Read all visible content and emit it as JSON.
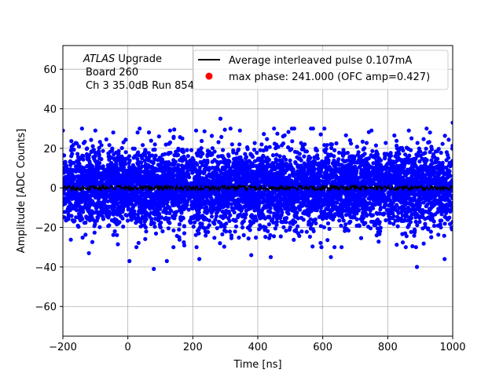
{
  "chart_data": {
    "type": "scatter",
    "xlabel": "Time [ns]",
    "ylabel": "Amplitude [ADC Counts]",
    "xlim": [
      -200,
      1000
    ],
    "ylim": [
      -75,
      72
    ],
    "xticks": [
      -200,
      0,
      200,
      400,
      600,
      800,
      1000
    ],
    "yticks": [
      -60,
      -40,
      -20,
      0,
      20,
      40,
      60
    ],
    "xtick_labels": [
      "−200",
      "0",
      "200",
      "400",
      "600",
      "800",
      "1000"
    ],
    "ytick_labels": [
      "−60",
      "−40",
      "−20",
      "0",
      "20",
      "40",
      "60"
    ],
    "grid": true,
    "legend_position": "top-right",
    "annotation": {
      "atlas": "ATLAS",
      "upgrade": " Upgrade",
      "board": "Board 260",
      "channel": "Ch 3 35.0dB  Run 854"
    },
    "series": [
      {
        "name": "Average interleaved pulse 0.107mA",
        "kind": "line",
        "color": "#000000",
        "x_range": [
          -200,
          1000
        ],
        "level": 0.0,
        "noise_amplitude": 1.2
      },
      {
        "name": "max phase: 241.000 (OFC amp=0.427)",
        "kind": "marker",
        "color": "#ff0000",
        "x": 241.0,
        "y": 0.427
      },
      {
        "name": "samples",
        "kind": "scatter",
        "color": "#0000ff",
        "x_range": [
          -200,
          1000
        ],
        "mean": 0,
        "std_dev": 9.5,
        "num_points": 6000,
        "outliers": [
          {
            "x": -200,
            "y": 29
          },
          {
            "x": -100,
            "y": 29
          },
          {
            "x": -45,
            "y": 28
          },
          {
            "x": 30,
            "y": 28
          },
          {
            "x": 130,
            "y": 29
          },
          {
            "x": 210,
            "y": 29
          },
          {
            "x": 285,
            "y": 35
          },
          {
            "x": 345,
            "y": 29
          },
          {
            "x": 450,
            "y": 30
          },
          {
            "x": 505,
            "y": 30
          },
          {
            "x": 570,
            "y": 30
          },
          {
            "x": 605,
            "y": 30
          },
          {
            "x": 750,
            "y": 29
          },
          {
            "x": 865,
            "y": 29
          },
          {
            "x": 930,
            "y": 28
          },
          {
            "x": 1000,
            "y": 33
          },
          {
            "x": 5,
            "y": -37
          },
          {
            "x": 80,
            "y": -41
          },
          {
            "x": 120,
            "y": -37
          },
          {
            "x": 220,
            "y": -36
          },
          {
            "x": 440,
            "y": -35
          },
          {
            "x": 625,
            "y": -35
          },
          {
            "x": 890,
            "y": -40
          },
          {
            "x": 975,
            "y": -36
          },
          {
            "x": -120,
            "y": -33
          },
          {
            "x": 380,
            "y": -34
          }
        ]
      }
    ]
  }
}
